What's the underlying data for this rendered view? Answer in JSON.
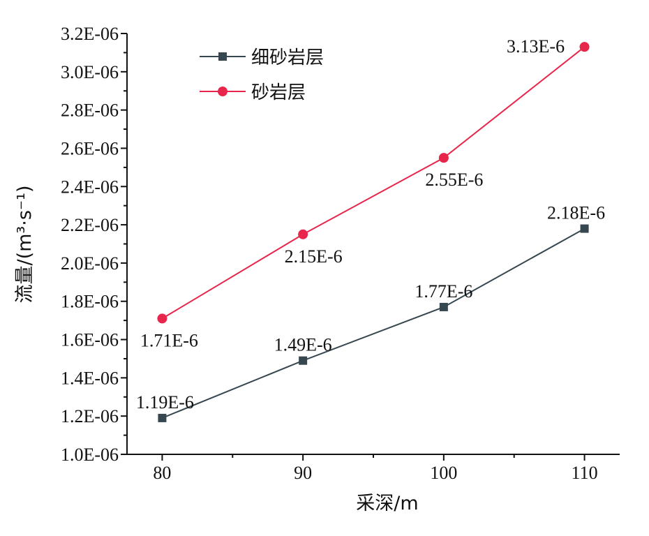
{
  "chart_data": {
    "type": "line",
    "xlabel": "采深/m",
    "ylabel": "流量/(m³·s⁻¹)",
    "x": [
      80,
      90,
      100,
      110
    ],
    "x_ticks": [
      "80",
      "90",
      "100",
      "110"
    ],
    "xlim": [
      77.5,
      112.5
    ],
    "ylim": [
      1e-06,
      3.2e-06
    ],
    "y_ticks": [
      "1.0E-06",
      "1.2E-06",
      "1.4E-06",
      "1.6E-06",
      "1.8E-06",
      "2.0E-06",
      "2.2E-06",
      "2.4E-06",
      "2.6E-06",
      "2.8E-06",
      "3.0E-06",
      "3.2E-06"
    ],
    "legend_position": "top-left",
    "grid": false,
    "series": [
      {
        "name": "细砂岩层",
        "color": "#37474f",
        "marker": "square",
        "values": [
          1.19e-06,
          1.49e-06,
          1.77e-06,
          2.18e-06
        ],
        "labels": [
          "1.19E-6",
          "1.49E-6",
          "1.77E-6",
          "2.18E-6"
        ]
      },
      {
        "name": "砂岩层",
        "color": "#e8254a",
        "marker": "circle",
        "values": [
          1.71e-06,
          2.15e-06,
          2.55e-06,
          3.13e-06
        ],
        "labels": [
          "1.71E-6",
          "2.15E-6",
          "2.55E-6",
          "3.13E-6"
        ]
      }
    ]
  }
}
